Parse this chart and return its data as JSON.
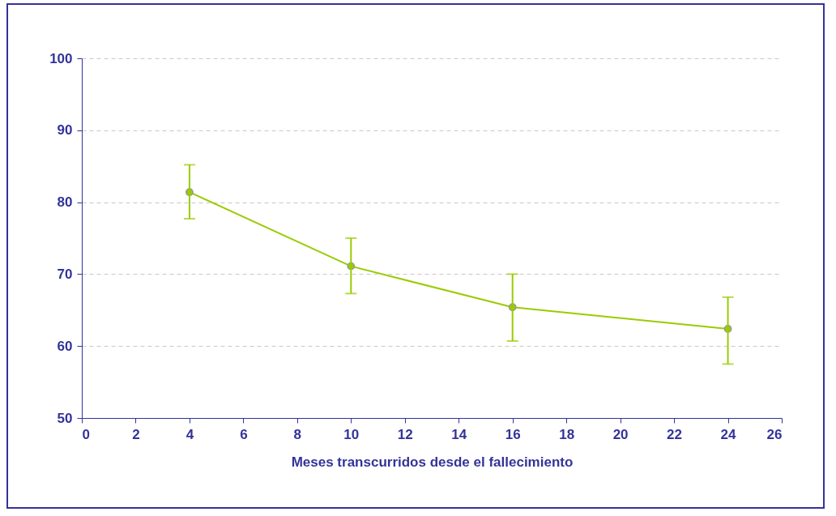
{
  "chart_data": {
    "type": "line",
    "xlabel": "Meses transcurridos desde el fallecimiento",
    "x": [
      4,
      10,
      16,
      24
    ],
    "series": [
      {
        "color": "#99cc00",
        "values": [
          81.4,
          71.1,
          65.4,
          62.4
        ],
        "errors": [
          [
            77.7,
            85.2
          ],
          [
            67.3,
            75.0
          ],
          [
            60.7,
            70.0
          ],
          [
            57.5,
            66.8
          ]
        ]
      }
    ],
    "xlim": [
      0,
      26
    ],
    "xticks": [
      0,
      2,
      4,
      6,
      8,
      10,
      12,
      14,
      16,
      18,
      20,
      22,
      24,
      26
    ],
    "ylim": [
      50,
      100
    ],
    "yticks": [
      50,
      60,
      70,
      80,
      90,
      100
    ],
    "grid": "y",
    "marker": "circle",
    "line_style": "solid"
  }
}
